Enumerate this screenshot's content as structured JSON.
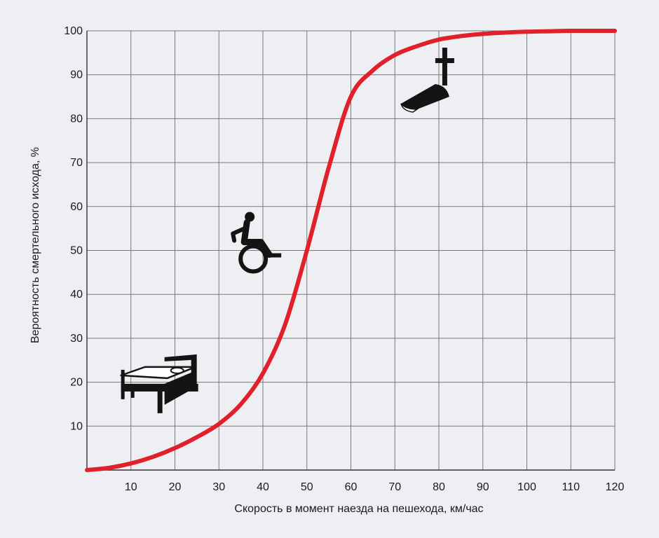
{
  "chart_data": {
    "type": "line",
    "xlabel": "Скорость в момент наезда на пешехода, км/час",
    "ylabel": "Вероятность смертельного исхода, %",
    "xlim": [
      0,
      120
    ],
    "ylim": [
      0,
      100
    ],
    "x_ticks": [
      "10",
      "20",
      "30",
      "40",
      "50",
      "60",
      "70",
      "80",
      "90",
      "100",
      "110",
      "120"
    ],
    "y_ticks": [
      "10",
      "20",
      "30",
      "40",
      "50",
      "60",
      "70",
      "80",
      "90",
      "100"
    ],
    "grid": true,
    "series": [
      {
        "color": "#e0202a",
        "x": [
          0,
          5,
          10,
          15,
          20,
          25,
          30,
          35,
          40,
          45,
          50,
          55,
          60,
          65,
          70,
          75,
          80,
          85,
          90,
          95,
          100,
          105,
          110,
          115,
          120
        ],
        "y": [
          0,
          0.5,
          1.5,
          3,
          5,
          7.5,
          10.5,
          15,
          22,
          33,
          50,
          69,
          85,
          91,
          94.5,
          96.5,
          98,
          98.8,
          99.3,
          99.6,
          99.8,
          99.9,
          100,
          100,
          100
        ]
      }
    ],
    "icons": [
      {
        "name": "bed-icon",
        "x": 17,
        "y": 19
      },
      {
        "name": "wheelchair-icon",
        "x": 37,
        "y": 50
      },
      {
        "name": "grave-cross-icon",
        "x": 76,
        "y": 85
      }
    ]
  }
}
